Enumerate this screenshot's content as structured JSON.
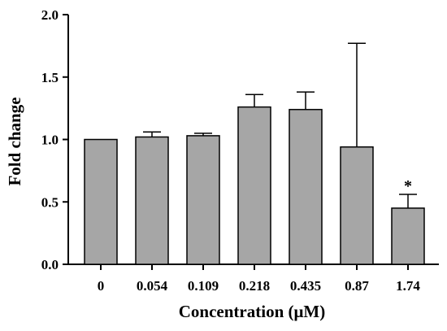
{
  "chart_data": {
    "type": "bar",
    "categories": [
      "0",
      "0.054",
      "0.109",
      "0.218",
      "0.435",
      "0.87",
      "1.74"
    ],
    "values": [
      1.0,
      1.02,
      1.03,
      1.26,
      1.24,
      0.94,
      0.45
    ],
    "error_upper": [
      0.0,
      0.04,
      0.02,
      0.1,
      0.14,
      0.83,
      0.11
    ],
    "significance": [
      "",
      "",
      "",
      "",
      "",
      "",
      "*"
    ],
    "title": "",
    "xlabel": "Concentration (μM)",
    "ylabel": "Fold change",
    "ylim": [
      0,
      2.0
    ],
    "yticks": [
      "0.0",
      "0.5",
      "1.0",
      "1.5",
      "2.0"
    ],
    "bar_color": "#a6a6a6",
    "grid": false
  }
}
